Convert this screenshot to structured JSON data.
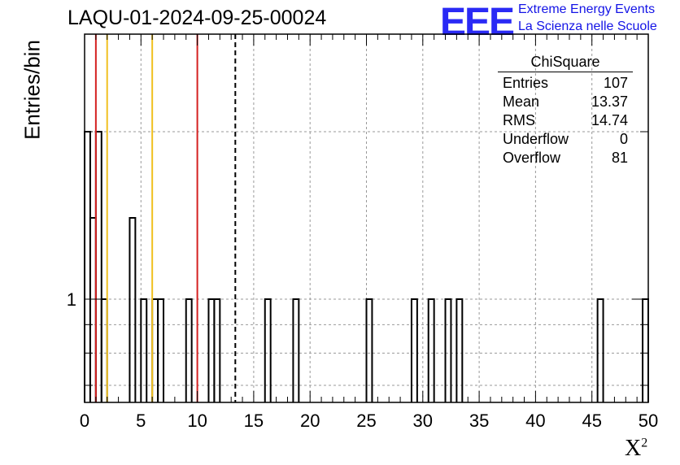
{
  "chart_data": {
    "type": "bar",
    "title": "LAQU-01-2024-09-25-00024",
    "xlabel": "X",
    "xlabel_sup": "2",
    "ylabel": "Entries/bin",
    "xlim": [
      0,
      50
    ],
    "ylog": true,
    "ytick_labels": [
      "1"
    ],
    "xticks": [
      0,
      5,
      10,
      15,
      20,
      25,
      30,
      35,
      40,
      45,
      50
    ],
    "grid": true,
    "bin_width": 0.5,
    "bars": [
      {
        "x": 0.0,
        "value": 2
      },
      {
        "x": 0.5,
        "value": 1.4
      },
      {
        "x": 1.0,
        "value": 2
      },
      {
        "x": 1.5,
        "value": 1
      },
      {
        "x": 4.0,
        "value": 1.4
      },
      {
        "x": 5.0,
        "value": 1
      },
      {
        "x": 6.0,
        "value": 1
      },
      {
        "x": 6.5,
        "value": 1
      },
      {
        "x": 9.0,
        "value": 1
      },
      {
        "x": 11.0,
        "value": 1
      },
      {
        "x": 11.5,
        "value": 1
      },
      {
        "x": 16.0,
        "value": 1
      },
      {
        "x": 18.5,
        "value": 1
      },
      {
        "x": 25.0,
        "value": 1
      },
      {
        "x": 29.0,
        "value": 1
      },
      {
        "x": 30.5,
        "value": 1
      },
      {
        "x": 32.0,
        "value": 1
      },
      {
        "x": 33.0,
        "value": 1
      },
      {
        "x": 45.5,
        "value": 1
      },
      {
        "x": 49.5,
        "value": 1
      }
    ],
    "vlines": [
      {
        "x": 1.0,
        "color": "#d42020",
        "style": "solid"
      },
      {
        "x": 2.0,
        "color": "#f0c020",
        "style": "solid"
      },
      {
        "x": 6.0,
        "color": "#f0c020",
        "style": "solid"
      },
      {
        "x": 10.0,
        "color": "#d42020",
        "style": "solid"
      },
      {
        "x": 13.37,
        "color": "#000000",
        "style": "dashed"
      }
    ]
  },
  "stats": {
    "title": "ChiSquare",
    "rows": [
      {
        "label": "Entries",
        "value": "107"
      },
      {
        "label": "Mean",
        "value": "13.37"
      },
      {
        "label": "RMS",
        "value": "14.74"
      },
      {
        "label": "Underflow",
        "value": "0"
      },
      {
        "label": "Overflow",
        "value": "81"
      }
    ]
  },
  "logo": {
    "mark": "EEE",
    "line1": "Extreme Energy Events",
    "line2": "La Scienza nelle Scuole",
    "color": "#2a2af5"
  }
}
